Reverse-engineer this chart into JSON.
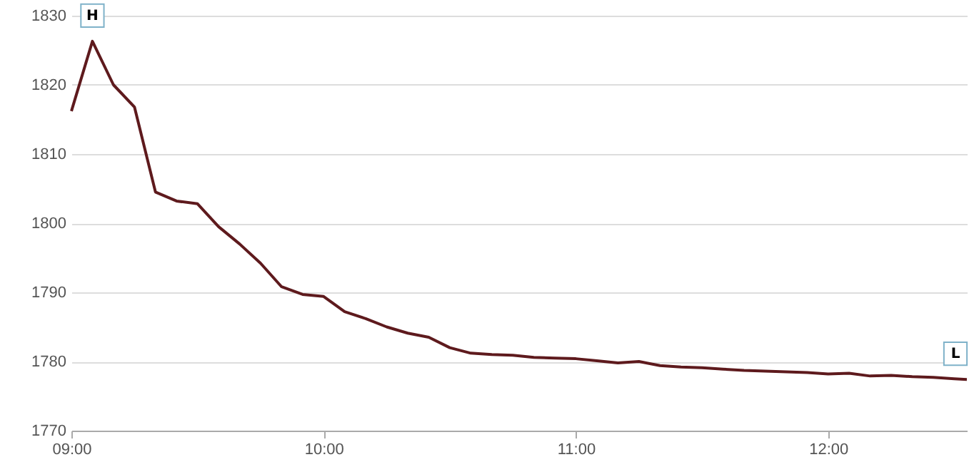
{
  "chart_data": {
    "type": "line",
    "x": [
      9,
      9.0833,
      9.1667,
      9.25,
      9.3333,
      9.4167,
      9.5,
      9.5833,
      9.6667,
      9.75,
      9.8333,
      9.9167,
      10,
      10.0833,
      10.1667,
      10.25,
      10.3333,
      10.4167,
      10.5,
      10.5833,
      10.6667,
      10.75,
      10.8333,
      10.9167,
      11,
      11.0833,
      11.1667,
      11.25,
      11.3333,
      11.4167,
      11.5,
      11.5833,
      11.6667,
      11.75,
      11.8333,
      11.9167,
      12,
      12.0833,
      12.1667,
      12.25,
      12.3333,
      12.4167,
      12.5,
      12.55
    ],
    "series": [
      {
        "color": "#5e1a1d",
        "values": [
          1816.2,
          1826.3,
          1820.0,
          1816.8,
          1804.5,
          1803.2,
          1802.8,
          1799.5,
          1797.0,
          1794.2,
          1790.8,
          1789.7,
          1789.4,
          1787.2,
          1786.2,
          1785.0,
          1784.1,
          1783.5,
          1782.0,
          1781.2,
          1781.0,
          1780.9,
          1780.6,
          1780.5,
          1780.4,
          1780.1,
          1779.8,
          1780.0,
          1779.4,
          1779.2,
          1779.1,
          1778.9,
          1778.7,
          1778.6,
          1778.5,
          1778.4,
          1778.2,
          1778.3,
          1777.9,
          1778.0,
          1777.8,
          1777.7,
          1777.5,
          1777.4
        ]
      }
    ],
    "xlim": [
      9,
      12.55
    ],
    "xticks": [
      {
        "value": 9,
        "label": "09:00"
      },
      {
        "value": 10,
        "label": "10:00"
      },
      {
        "value": 11,
        "label": "11:00"
      },
      {
        "value": 12,
        "label": "12:00"
      }
    ],
    "ylim": [
      1770,
      1830
    ],
    "yticks": [
      1770,
      1780,
      1790,
      1800,
      1810,
      1820,
      1830
    ],
    "grid": "y",
    "marker": "none",
    "line_style": "solid",
    "annotations": [
      {
        "text": "H",
        "x": 9.0833,
        "y": 1826.3
      },
      {
        "text": "L",
        "x": 12.55,
        "y": 1777.4
      }
    ]
  }
}
